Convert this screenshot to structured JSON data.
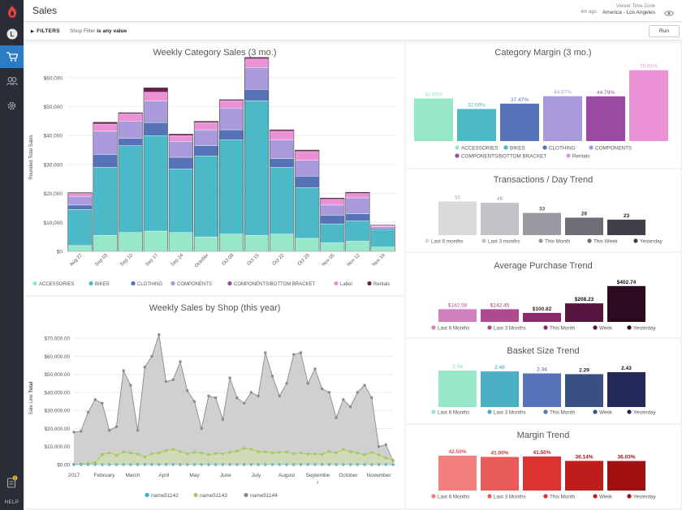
{
  "app": {
    "title": "Sales",
    "time_ago": "4m ago",
    "tz_label": "Viewer Time Zone",
    "tz_value": "America - Los Angeles",
    "help_label": "HELP",
    "notification_count": "1"
  },
  "filters": {
    "label": "FILTERS",
    "desc_prefix": "Shop Filter",
    "desc_value": "is any value",
    "run_label": "Run"
  },
  "colors": {
    "accessories": "#97e8c8",
    "bikes": "#4bb9c8",
    "clothing": "#5673b8",
    "components": "#a99adc",
    "components_bottom": "#9b4ba3",
    "labor": "#eb92d6",
    "rentals": "#6c1f4b"
  },
  "weekly_category": {
    "title": "Weekly Category Sales (3 mo.)",
    "ylabel": "Rounded Total Sales",
    "yticks": [
      "$0",
      "$10,000",
      "$20,000",
      "$30,000",
      "$40,000",
      "$50,000",
      "$60,000"
    ],
    "legend": [
      "ACCESSORIES",
      "BIKES",
      "CLOTHING",
      "COMPONENTS",
      "COMPONENTS/BOTTOM BRACKET",
      "Labor",
      "Rentals"
    ]
  },
  "category_margin": {
    "title": "Category Margin (3 mo.)",
    "legend": [
      "ACCESSORIES",
      "BIKES",
      "CLOTHING",
      "COMPONENTS",
      "COMPONENTS/BOTTOM BRACKET",
      "Rentals"
    ]
  },
  "transactions": {
    "title": "Transactions / Day Trend",
    "legend": [
      "Last 6 months",
      "Last 3 months",
      "This Month",
      "This Week",
      "Yesterday"
    ]
  },
  "avg_purchase": {
    "title": "Average Purchase Trend",
    "legend": [
      "Last 6 Months",
      "Last 3 Months",
      "This Month",
      "Week",
      "Yesterday"
    ]
  },
  "basket": {
    "title": "Basket Size Trend",
    "legend": [
      "Last 6 Months",
      "Last 3 Months",
      "This Month",
      "Week",
      "Yesterday"
    ]
  },
  "margin_trend": {
    "title": "Margin Trend",
    "legend": [
      "Last 6 Months",
      "Last 3 Months",
      "This Month",
      "Week",
      "Yesterday"
    ]
  },
  "weekly_shop": {
    "title": "Weekly Sales by Shop (this year)",
    "ylabel_prefix": "Sale Line",
    "ylabel_bold": "Total",
    "yticks": [
      "$0.00",
      "$10,000.00",
      "$20,000.00",
      "$30,000.00",
      "$40,000.00",
      "$50,000.00",
      "$60,000.00",
      "$70,000.00"
    ],
    "xticks": [
      "2017",
      "February",
      "March",
      "April",
      "May",
      "June",
      "July",
      "August",
      "Septembe",
      "October",
      "November"
    ],
    "xtick_wrap": "r",
    "legend": [
      "name51142",
      "name51143",
      "name51144"
    ]
  },
  "chart_data": [
    {
      "type": "bar",
      "stacked": true,
      "title": "Weekly Category Sales (3 mo.)",
      "ylabel": "Rounded Total Sales",
      "ylim": [
        0,
        65000
      ],
      "categories": [
        "Aug 27",
        "Sep 03",
        "Sep 10",
        "Sep 17",
        "Sep 24",
        "October",
        "Oct 08",
        "Oct 15",
        "Oct 22",
        "Oct 29",
        "Nov 05",
        "Nov 12",
        "Nov 19"
      ],
      "series": [
        {
          "name": "ACCESSORIES",
          "values": [
            2000,
            5500,
            6500,
            7000,
            6500,
            5000,
            6000,
            5500,
            6000,
            4500,
            3000,
            3500,
            1500
          ]
        },
        {
          "name": "BIKES",
          "values": [
            12500,
            23500,
            30000,
            33000,
            22000,
            28000,
            32500,
            46500,
            23000,
            17500,
            6500,
            7000,
            6000
          ]
        },
        {
          "name": "CLOTHING",
          "values": [
            1500,
            4500,
            2500,
            4500,
            4000,
            3500,
            3500,
            4000,
            3000,
            4000,
            3000,
            2500,
            500
          ]
        },
        {
          "name": "COMPONENTS",
          "values": [
            3000,
            8000,
            6000,
            7500,
            5500,
            5500,
            7500,
            7500,
            6500,
            5500,
            3500,
            5500,
            500
          ]
        },
        {
          "name": "COMPONENTS/BOTTOM BRACKET",
          "values": [
            0,
            0,
            0,
            0,
            0,
            0,
            0,
            0,
            0,
            0,
            0,
            0,
            0
          ]
        },
        {
          "name": "Labor",
          "values": [
            1000,
            2500,
            2500,
            3000,
            2000,
            2500,
            2500,
            3000,
            3000,
            3000,
            2000,
            1500,
            500
          ]
        },
        {
          "name": "Rentals",
          "values": [
            300,
            600,
            400,
            1500,
            500,
            400,
            400,
            500,
            500,
            500,
            400,
            400,
            100
          ]
        }
      ]
    },
    {
      "type": "bar",
      "title": "Category Margin (3 mo.)",
      "categories": [
        "ACCESSORIES",
        "BIKES",
        "CLOTHING",
        "COMPONENTS",
        "COMPONENTS/BOTTOM BRACKET",
        "Rentals"
      ],
      "values": [
        42.65,
        32.09,
        37.47,
        44.87,
        44.79,
        70.91
      ],
      "labels": [
        "42.65%",
        "32.09%",
        "37.47%",
        "44.87%",
        "44.79%",
        "70.91%"
      ],
      "colors": [
        "#97e8c8",
        "#4bb9c8",
        "#5673b8",
        "#a99adc",
        "#9b4ba3",
        "#eb92d6"
      ]
    },
    {
      "type": "bar",
      "title": "Transactions / Day Trend",
      "categories": [
        "Last 6 months",
        "Last 3 months",
        "This Month",
        "This Week",
        "Yesterday"
      ],
      "values": [
        50,
        48,
        33,
        26,
        23
      ],
      "labels": [
        "50",
        "48",
        "33",
        "26",
        "23"
      ],
      "colors": [
        "#d9d9dc",
        "#c2c2c7",
        "#9a9aa3",
        "#6d6e78",
        "#3f4049"
      ]
    },
    {
      "type": "bar",
      "title": "Average Purchase Trend",
      "categories": [
        "Last 6 Months",
        "Last 3 Months",
        "This Month",
        "Week",
        "Yesterday"
      ],
      "values": [
        142.58,
        142.45,
        100.82,
        208.23,
        402.74
      ],
      "labels": [
        "$142.58",
        "$142.45",
        "$100.82",
        "$208.23",
        "$402.74"
      ],
      "colors": [
        "#d17fbd",
        "#b04a90",
        "#8c2a6e",
        "#56163f",
        "#2c0a20"
      ]
    },
    {
      "type": "bar",
      "title": "Basket Size Trend",
      "categories": [
        "Last 6 Months",
        "Last 3 Months",
        "This Month",
        "Week",
        "Yesterday"
      ],
      "values": [
        2.54,
        2.48,
        2.34,
        2.29,
        2.43
      ],
      "labels": [
        "2.54",
        "2.48",
        "2.34",
        "2.29",
        "2.43"
      ],
      "colors": [
        "#97e8c8",
        "#4bb0c4",
        "#5673b8",
        "#3a4f84",
        "#232a5a"
      ]
    },
    {
      "type": "bar",
      "title": "Margin Trend",
      "categories": [
        "Last 6 Months",
        "Last 3 Months",
        "This Month",
        "Week",
        "Yesterday"
      ],
      "values": [
        42.5,
        41.0,
        41.5,
        36.14,
        36.03
      ],
      "labels": [
        "42.50%",
        "41.00%",
        "41.50%",
        "36.14%",
        "36.03%"
      ],
      "colors": [
        "#f37e7e",
        "#e95a5a",
        "#dc3333",
        "#bf1c1c",
        "#a01010"
      ]
    },
    {
      "type": "area",
      "title": "Weekly Sales by Shop (this year)",
      "ylabel": "Sale Line Total",
      "ylim": [
        0,
        75000
      ],
      "xlim": [
        0,
        45
      ],
      "x_tick_positions": [
        0,
        4.3,
        8.3,
        12.7,
        17,
        21.4,
        25.7,
        30,
        34.4,
        38.7,
        43
      ],
      "series": [
        {
          "name": "name51142",
          "values": [
            0,
            0,
            0,
            0,
            0,
            0,
            0,
            0,
            0,
            0,
            0,
            0,
            0,
            0,
            0,
            0,
            0,
            0,
            0,
            0,
            0,
            0,
            0,
            0,
            0,
            0,
            0,
            0,
            0,
            0,
            0,
            0,
            0,
            0,
            0,
            0,
            0,
            0,
            0,
            0,
            0,
            0,
            0,
            0,
            0,
            0
          ]
        },
        {
          "name": "name51143",
          "values": [
            200,
            300,
            600,
            1200,
            5500,
            6500,
            5200,
            7000,
            6500,
            5800,
            4200,
            6000,
            6500,
            7800,
            8500,
            7200,
            6000,
            6800,
            6500,
            5500,
            6200,
            6000,
            6800,
            7500,
            9000,
            8500,
            7200,
            7000,
            6500,
            6800,
            7000,
            6000,
            6500,
            5800,
            6000,
            5700,
            7200,
            6500,
            8500,
            7200,
            6500,
            5500,
            6800,
            5500,
            3800,
            2500
          ]
        },
        {
          "name": "name51144",
          "values": [
            18000,
            18500,
            29000,
            36000,
            34000,
            19000,
            21000,
            52000,
            44000,
            19000,
            54000,
            60000,
            72000,
            46000,
            47000,
            57000,
            41000,
            35000,
            20000,
            38000,
            37000,
            25000,
            48000,
            37000,
            34000,
            40000,
            38000,
            62000,
            49000,
            38000,
            45000,
            61000,
            62000,
            45000,
            53000,
            42000,
            40000,
            26000,
            36000,
            32000,
            40000,
            44000,
            37000,
            10000,
            11000,
            2000
          ]
        }
      ]
    }
  ]
}
